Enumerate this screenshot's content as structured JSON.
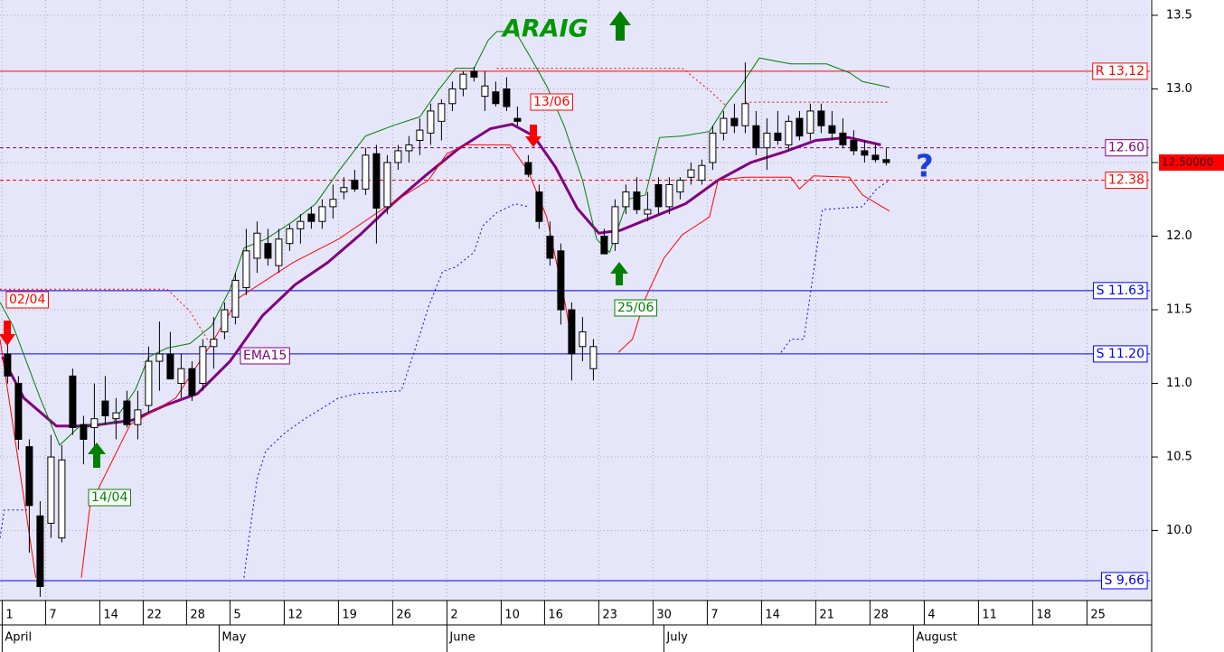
{
  "chart_data": {
    "type": "candlestick",
    "background": "#e6e6fa",
    "grid": true,
    "xlim": [
      -0.2,
      105.8
    ],
    "ylim": [
      9.525,
      13.604
    ],
    "yticks": [
      {
        "value": 13.5,
        "label": "13.5"
      },
      {
        "value": 13,
        "label": "13.0"
      },
      {
        "value": 12.5,
        "label": "12.5"
      },
      {
        "value": 12,
        "label": "12.0"
      },
      {
        "value": 11.5,
        "label": "11.5"
      },
      {
        "value": 11,
        "label": "11.0"
      },
      {
        "value": 10.5,
        "label": "10.5"
      },
      {
        "value": 10,
        "label": "10.0"
      }
    ],
    "xticks": [
      {
        "value": 0,
        "label": "1"
      },
      {
        "value": 4,
        "label": "7"
      },
      {
        "value": 9,
        "label": "14"
      },
      {
        "value": 13,
        "label": "22"
      },
      {
        "value": 17,
        "label": "28"
      },
      {
        "value": 21,
        "label": "5"
      },
      {
        "value": 26,
        "label": "12"
      },
      {
        "value": 31,
        "label": "19"
      },
      {
        "value": 36,
        "label": "26"
      },
      {
        "value": 41,
        "label": "2"
      },
      {
        "value": 46,
        "label": "10"
      },
      {
        "value": 50,
        "label": "16"
      },
      {
        "value": 55,
        "label": "23"
      },
      {
        "value": 60,
        "label": "30"
      },
      {
        "value": 65,
        "label": "7"
      },
      {
        "value": 70,
        "label": "14"
      },
      {
        "value": 75,
        "label": "21"
      },
      {
        "value": 80,
        "label": "28"
      },
      {
        "value": 85,
        "label": "4"
      },
      {
        "value": 90,
        "label": "11"
      },
      {
        "value": 95,
        "label": "18"
      },
      {
        "value": 100,
        "label": "25"
      }
    ],
    "months": [
      {
        "value": 0,
        "label": "April"
      },
      {
        "value": 20,
        "label": "May"
      },
      {
        "value": 41,
        "label": "June"
      },
      {
        "value": 61,
        "label": "July"
      },
      {
        "value": 84,
        "label": "August"
      }
    ],
    "x": [
      0,
      1,
      2,
      3,
      4,
      5,
      6,
      7,
      8,
      9,
      10,
      11,
      12,
      13,
      14,
      15,
      16,
      17,
      18,
      19,
      20,
      21,
      22,
      23,
      24,
      25,
      26,
      27,
      28,
      29,
      30,
      31,
      32,
      33,
      34,
      35,
      36,
      37,
      38,
      39,
      40,
      41,
      42,
      43,
      44,
      45,
      46,
      47,
      48,
      49,
      50,
      51,
      52,
      53,
      54,
      55,
      56,
      57,
      58,
      59,
      60,
      61,
      62,
      63,
      64,
      65,
      66,
      67,
      68,
      69,
      70,
      71,
      72,
      73,
      74,
      75,
      76,
      77,
      78,
      79,
      80,
      81
    ],
    "open": [
      11.2,
      11.0,
      10.57,
      10.1,
      10.05,
      9.95,
      11.05,
      10.72,
      10.7,
      10.88,
      10.76,
      10.88,
      10.72,
      10.85,
      11.15,
      11.2,
      11.0,
      11.1,
      11.0,
      11.25,
      11.35,
      11.45,
      11.65,
      11.85,
      11.95,
      11.8,
      11.95,
      12.05,
      12.15,
      12.1,
      12.2,
      12.3,
      12.38,
      12.32,
      12.56,
      12.2,
      12.5,
      12.58,
      12.65,
      12.7,
      12.78,
      12.9,
      13.0,
      13.12,
      12.95,
      12.98,
      13.0,
      12.8,
      12.5,
      12.3,
      12.0,
      11.9,
      11.5,
      11.25,
      11.1,
      12.0,
      11.95,
      12.2,
      12.3,
      12.15,
      12.35,
      12.2,
      12.3,
      12.4,
      12.38,
      12.5,
      12.7,
      12.8,
      12.75,
      12.75,
      12.6,
      12.7,
      12.62,
      12.8,
      12.7,
      12.85,
      12.75,
      12.7,
      12.65,
      12.58,
      12.55,
      12.52
    ],
    "high": [
      11.28,
      11.05,
      10.62,
      10.2,
      10.65,
      10.58,
      11.1,
      10.78,
      11.0,
      11.05,
      10.9,
      10.95,
      10.95,
      11.25,
      11.42,
      11.35,
      11.2,
      11.15,
      11.3,
      11.45,
      11.55,
      11.75,
      12.05,
      12.1,
      12.05,
      12.05,
      12.08,
      12.15,
      12.2,
      12.25,
      12.35,
      12.4,
      12.45,
      12.6,
      12.62,
      12.55,
      12.62,
      12.68,
      12.8,
      12.9,
      12.93,
      13.05,
      13.12,
      13.15,
      13.12,
      13.05,
      13.08,
      12.88,
      12.55,
      12.35,
      12.1,
      11.95,
      11.55,
      11.45,
      11.3,
      12.05,
      12.25,
      12.35,
      12.4,
      12.3,
      12.4,
      12.4,
      12.4,
      12.5,
      12.52,
      12.75,
      12.85,
      12.9,
      13.18,
      12.85,
      12.8,
      12.85,
      12.82,
      12.85,
      12.9,
      12.9,
      12.85,
      12.8,
      12.72,
      12.65,
      12.62,
      12.6
    ],
    "low": [
      11.0,
      10.55,
      9.85,
      9.55,
      9.95,
      9.92,
      10.65,
      10.45,
      10.55,
      10.72,
      10.62,
      10.7,
      10.62,
      10.8,
      10.95,
      11.05,
      10.9,
      10.88,
      10.95,
      11.1,
      11.3,
      11.4,
      11.6,
      11.75,
      11.8,
      11.75,
      11.9,
      11.95,
      12.05,
      12.05,
      12.12,
      12.25,
      12.3,
      12.28,
      11.95,
      12.15,
      12.45,
      12.5,
      12.55,
      12.62,
      12.65,
      12.85,
      12.95,
      13.05,
      12.85,
      12.88,
      12.85,
      12.75,
      12.4,
      12.05,
      11.8,
      11.4,
      11.02,
      11.15,
      11.02,
      11.88,
      11.9,
      12.15,
      12.15,
      12.1,
      12.15,
      12.15,
      12.25,
      12.35,
      12.35,
      12.45,
      12.65,
      12.7,
      12.7,
      12.55,
      12.45,
      12.62,
      12.58,
      12.65,
      12.65,
      12.7,
      12.65,
      12.6,
      12.55,
      12.5,
      12.5,
      12.48
    ],
    "close": [
      11.05,
      10.62,
      10.17,
      9.62,
      10.5,
      10.48,
      10.7,
      10.62,
      10.76,
      10.78,
      10.8,
      10.72,
      10.82,
      11.15,
      11.2,
      11.03,
      11.1,
      10.92,
      11.25,
      11.3,
      11.5,
      11.7,
      11.9,
      12.02,
      11.85,
      11.98,
      12.05,
      12.1,
      12.1,
      12.2,
      12.25,
      12.33,
      12.32,
      12.55,
      12.19,
      12.5,
      12.58,
      12.62,
      12.72,
      12.85,
      12.9,
      13.0,
      13.1,
      13.08,
      13.02,
      12.9,
      12.88,
      12.78,
      12.42,
      12.1,
      11.85,
      11.5,
      11.2,
      11.35,
      11.25,
      11.88,
      12.2,
      12.3,
      12.18,
      12.18,
      12.2,
      12.35,
      12.38,
      12.45,
      12.48,
      12.7,
      12.8,
      12.75,
      12.9,
      12.6,
      12.7,
      12.65,
      12.78,
      12.68,
      12.85,
      12.75,
      12.7,
      12.62,
      12.58,
      12.55,
      12.52,
      12.5
    ],
    "lines": [
      {
        "name": "EMA15",
        "color": "#800080",
        "style": "thick",
        "x": [
          0,
          2,
          5,
          8,
          12,
          15,
          18,
          21,
          24,
          27,
          30,
          33,
          36,
          39,
          42,
          45,
          47,
          49,
          51,
          53,
          55,
          57,
          60,
          63,
          66,
          69,
          72,
          75,
          78,
          81
        ],
        "values": [
          11.18,
          10.9,
          10.71,
          10.71,
          10.75,
          10.85,
          10.93,
          11.15,
          11.46,
          11.67,
          11.82,
          12.01,
          12.22,
          12.41,
          12.59,
          12.73,
          12.76,
          12.68,
          12.47,
          12.19,
          12.02,
          12.04,
          12.13,
          12.22,
          12.38,
          12.5,
          12.57,
          12.65,
          12.67,
          12.62
        ]
      },
      {
        "color": "#008000",
        "style": "solid",
        "x": [
          -0.2,
          1,
          3.5,
          5.3,
          7.3,
          10.2,
          12.3,
          13.5,
          15.2,
          17.3,
          19.3,
          21,
          22.3,
          24.3,
          26.8,
          28.9,
          31,
          33.5,
          36,
          38.5,
          40.2,
          41.8,
          43.5,
          44.8,
          45.6,
          47.3,
          48.5,
          50.2,
          51.8,
          53.5,
          54.8,
          56,
          57.7,
          59.3,
          60.6,
          62.7,
          65.2,
          66.8,
          68.1,
          69.8,
          72.7,
          76,
          78.1,
          79.3,
          81.8
        ],
        "values": [
          11.55,
          11.39,
          10.9,
          10.58,
          10.72,
          10.73,
          10.96,
          11.18,
          11.24,
          11.27,
          11.39,
          11.64,
          11.92,
          11.98,
          12.1,
          12.22,
          12.44,
          12.68,
          12.75,
          12.81,
          12.99,
          13.14,
          13.14,
          13.33,
          13.39,
          13.39,
          13.24,
          13.02,
          12.75,
          12.38,
          11.98,
          11.89,
          12.25,
          12.28,
          12.67,
          12.68,
          12.71,
          12.9,
          13.02,
          13.21,
          13.17,
          13.17,
          13.11,
          13.05,
          13.01
        ]
      },
      {
        "color": "#ff0000",
        "style": "solid",
        "x": [
          -0.2,
          3.1,
          5,
          7.3,
          8.1,
          11.8,
          16,
          19.3,
          21.8,
          26.8,
          31,
          35.2,
          39.3,
          41,
          42.7,
          46.8,
          48.5,
          50.2,
          51.8,
          52.7,
          54.5,
          56.8,
          58.1,
          59.3,
          61,
          62.7,
          65.2,
          66,
          68.5,
          72.7,
          73.5,
          74.8,
          78.1,
          79.3,
          81.8
        ],
        "values": [
          11.3,
          9.68,
          null,
          9.68,
          10.17,
          10.72,
          10.9,
          11.27,
          11.58,
          11.82,
          11.98,
          12.19,
          12.38,
          12.56,
          12.62,
          12.62,
          12.44,
          12.13,
          11.58,
          11.21,
          null,
          11.21,
          11.3,
          11.58,
          11.85,
          12.01,
          12.13,
          12.38,
          12.4,
          12.4,
          12.32,
          12.41,
          12.4,
          12.28,
          12.17
        ]
      },
      {
        "color": "#0000ff",
        "style": "dotted",
        "x": [
          -0.2,
          0.2,
          2.3,
          2.5,
          22.3,
          22.7,
          23.5,
          24.3,
          26,
          27.7,
          31,
          32.7,
          36.8,
          38.5,
          39.3,
          40.6,
          41.8,
          43.5,
          44.3,
          45.6,
          47.3,
          48.5,
          49,
          71.8,
          72.7,
          73.9,
          74.8,
          75.6,
          79.3,
          80.6,
          81.8
        ],
        "values": [
          9.95,
          10.14,
          10.14,
          null,
          9.68,
          9.92,
          10.35,
          10.54,
          10.66,
          10.75,
          10.9,
          10.93,
          10.95,
          11.33,
          11.52,
          11.76,
          11.79,
          11.89,
          12.07,
          12.16,
          12.22,
          12.2,
          null,
          11.21,
          11.3,
          11.3,
          11.76,
          12.18,
          12.2,
          12.32,
          12.38
        ]
      },
      {
        "color": "#ff0000",
        "style": "dotted",
        "x": [
          -0.2,
          15.2,
          17.3,
          18.9,
          19.3,
          19.5,
          45.6,
          62.7,
          65.2,
          66.8,
          67.5,
          68.5,
          81.8
        ],
        "values": [
          11.64,
          11.64,
          11.49,
          11.3,
          11.27,
          null,
          13.14,
          13.14,
          12.99,
          12.88,
          null,
          12.91,
          12.91
        ]
      }
    ],
    "levels": [
      {
        "label": "R 13,12",
        "value": 13.12,
        "color": "#ff0000",
        "style": "solid"
      },
      {
        "label": "12.60",
        "value": 12.6,
        "color": "#800080",
        "style": "dashed"
      },
      {
        "label": "12.38",
        "value": 12.38,
        "color": "#ff0000",
        "style": "dashed"
      },
      {
        "label": "S 11.63",
        "value": 11.63,
        "color": "#0000ff",
        "style": "solid"
      },
      {
        "label": "S 11.20",
        "value": 11.2,
        "color": "#0000ff",
        "style": "solid"
      },
      {
        "label": "S 9,66",
        "value": 9.66,
        "color": "#0000ff",
        "style": "solid"
      }
    ],
    "last_price": {
      "value": 12.5,
      "label": "12.50000"
    },
    "annotations": [
      "02/04",
      "14/04",
      "13/06",
      "25/06",
      "ARAIG",
      "?"
    ]
  }
}
